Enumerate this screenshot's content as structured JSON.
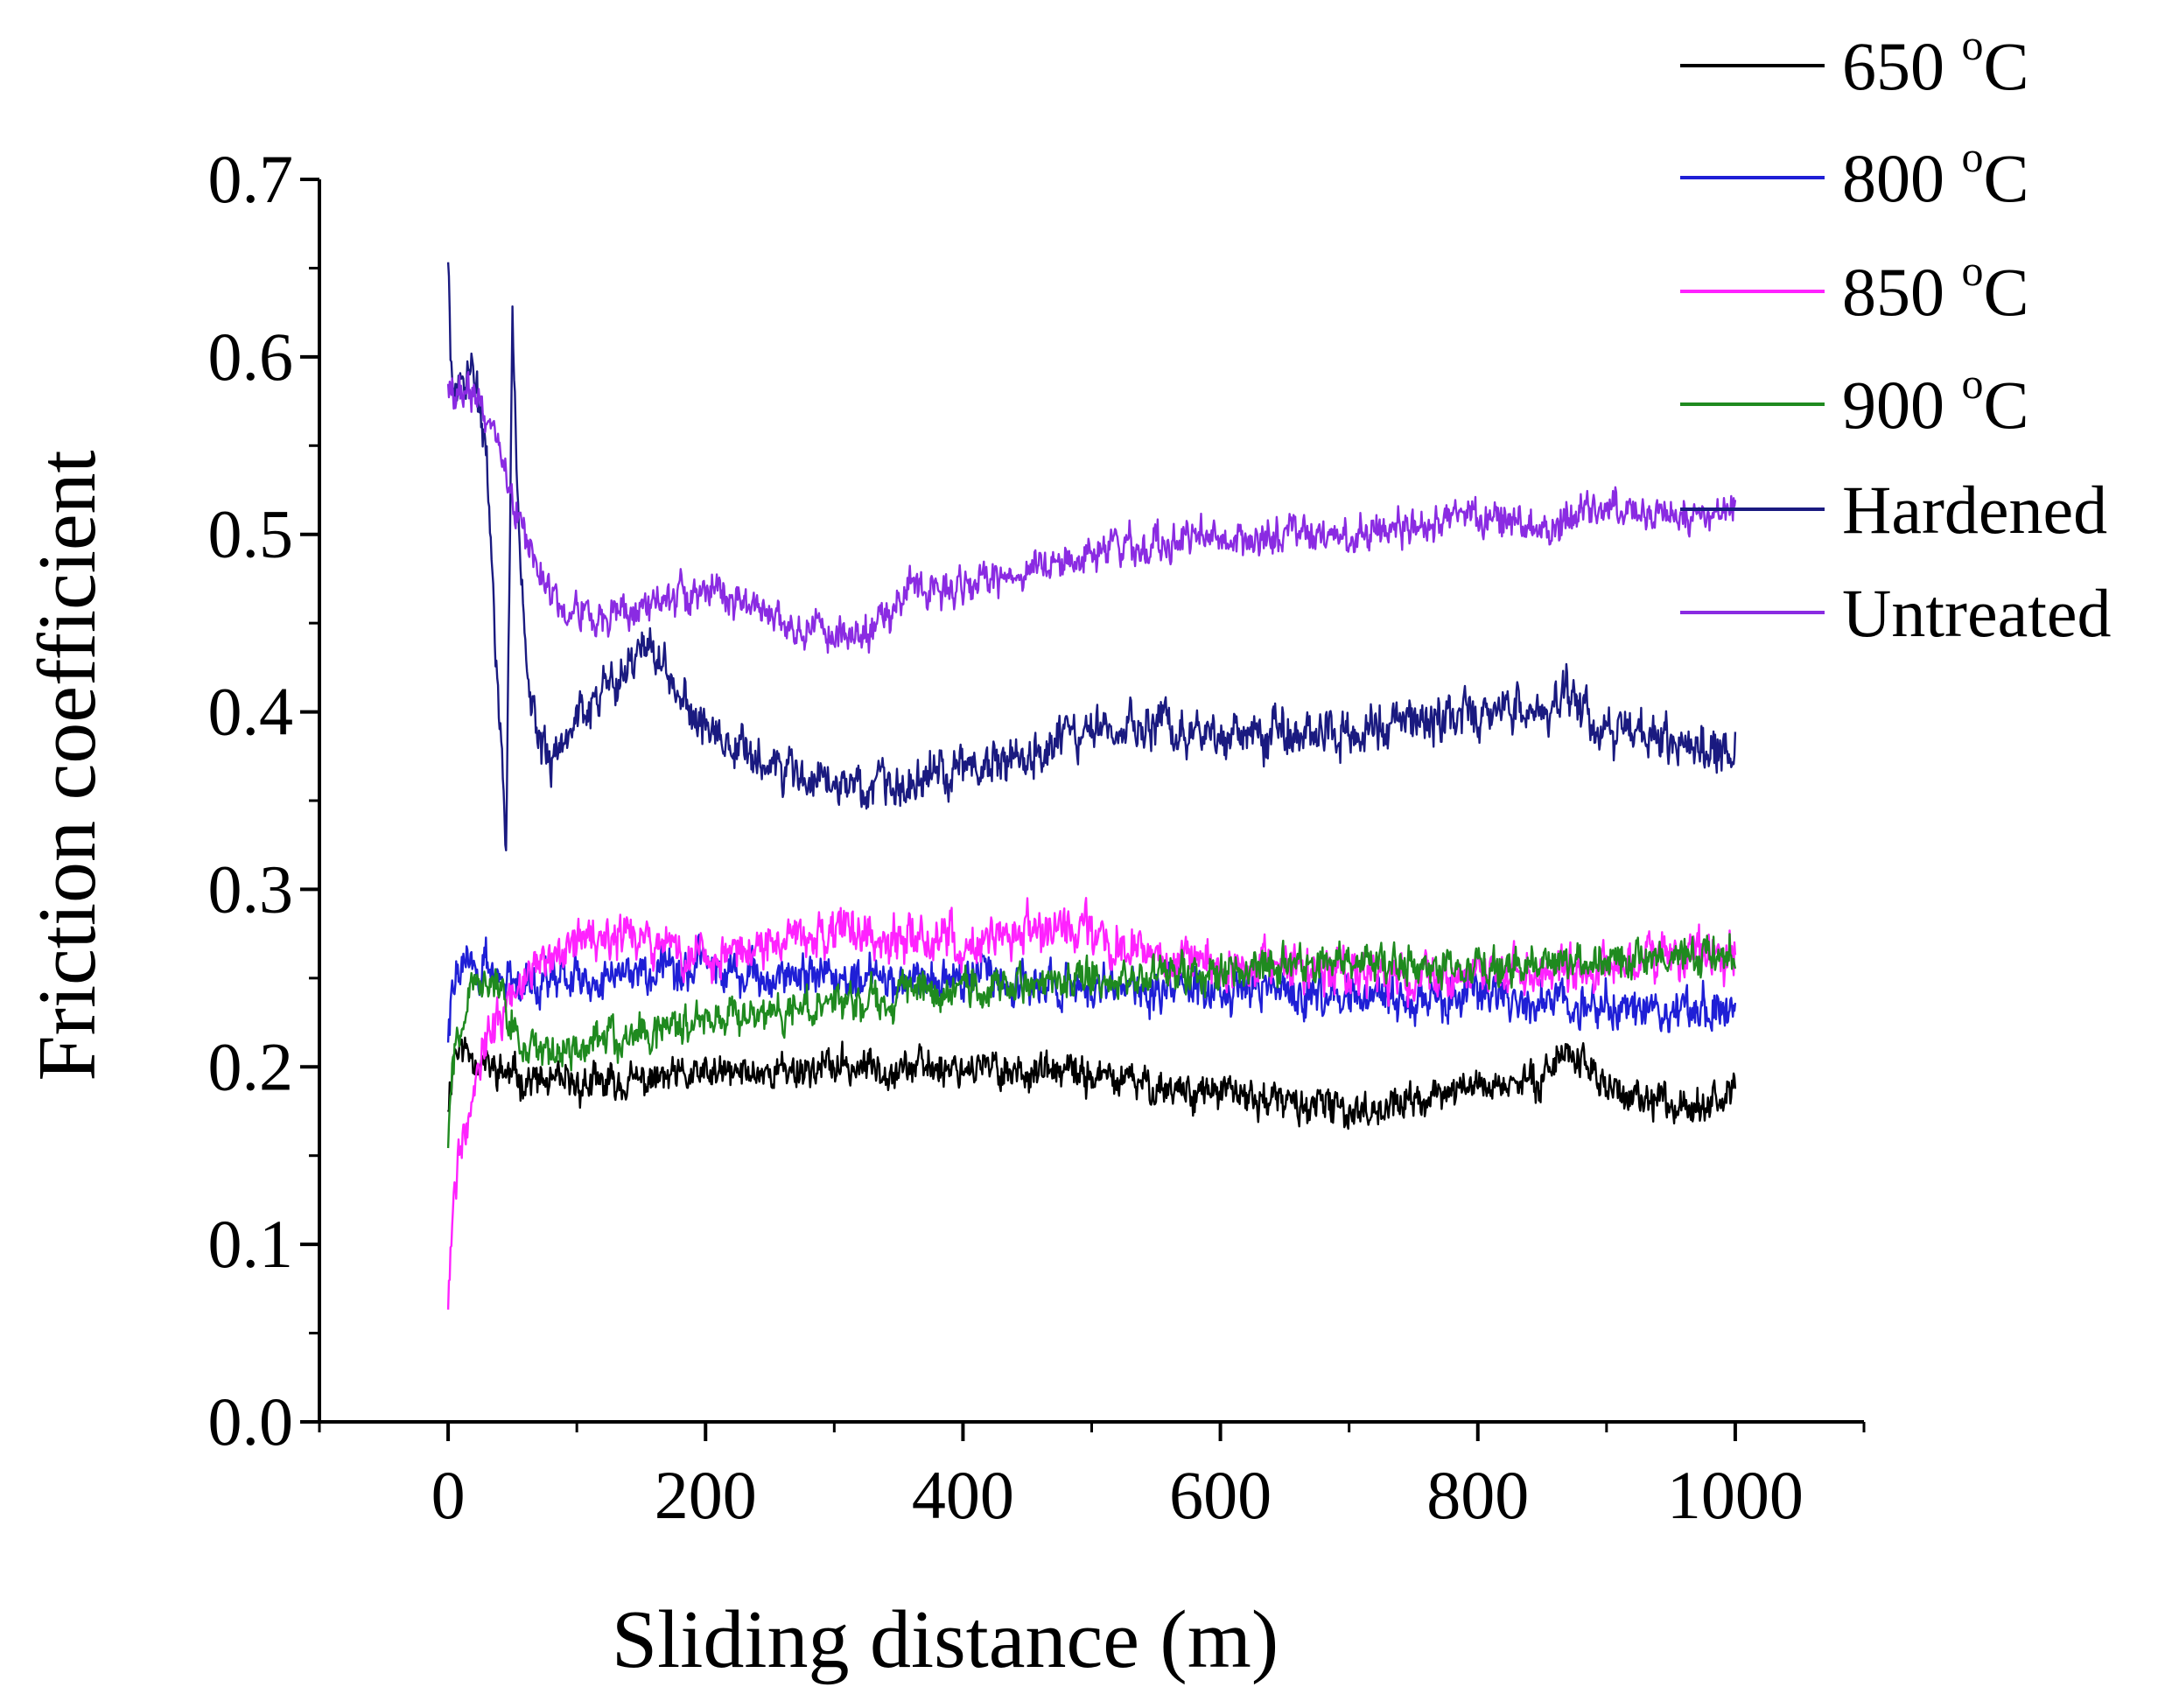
{
  "chart_data": {
    "type": "line",
    "title": "",
    "xlabel": "Sliding distance (m)",
    "ylabel": "Friction coefficient",
    "xlim": [
      -100,
      1100
    ],
    "ylim": [
      0.0,
      0.7
    ],
    "xticks": [
      "0",
      "200",
      "400",
      "600",
      "800",
      "1000"
    ],
    "yticks": [
      "0.0",
      "0.1",
      "0.2",
      "0.3",
      "0.4",
      "0.5",
      "0.6",
      "0.7"
    ],
    "legend_position": "top-right",
    "series": [
      {
        "name": "650 °C",
        "label_main": "650 ",
        "label_sup": "o",
        "label_unit": "C",
        "color": "#000000",
        "noise": 0.011,
        "seed": 11,
        "x": [
          0,
          5,
          15,
          30,
          50,
          80,
          120,
          200,
          300,
          400,
          500,
          540,
          600,
          650,
          700,
          750,
          800,
          840,
          870,
          900,
          920,
          960,
          1000
        ],
        "y": [
          0.18,
          0.21,
          0.21,
          0.2,
          0.195,
          0.19,
          0.19,
          0.195,
          0.2,
          0.2,
          0.195,
          0.19,
          0.185,
          0.18,
          0.175,
          0.18,
          0.19,
          0.19,
          0.21,
          0.19,
          0.18,
          0.18,
          0.185
        ]
      },
      {
        "name": "800 °C",
        "label_main": "800 ",
        "label_sup": "o",
        "label_unit": "C",
        "color": "#1f1fd6",
        "noise": 0.013,
        "seed": 22,
        "x": [
          0,
          5,
          15,
          40,
          100,
          200,
          300,
          400,
          500,
          600,
          700,
          800,
          900,
          950,
          1000
        ],
        "y": [
          0.22,
          0.25,
          0.26,
          0.25,
          0.25,
          0.255,
          0.25,
          0.25,
          0.245,
          0.245,
          0.24,
          0.24,
          0.235,
          0.23,
          0.235
        ]
      },
      {
        "name": "850 °C",
        "label_main": "850 ",
        "label_sup": "o",
        "label_unit": "C",
        "color": "#ff22ff",
        "noise": 0.014,
        "seed": 33,
        "x": [
          0,
          3,
          10,
          25,
          50,
          80,
          150,
          200,
          250,
          300,
          350,
          400,
          450,
          490,
          550,
          650,
          750,
          850,
          950,
          1000
        ],
        "y": [
          0.07,
          0.11,
          0.16,
          0.21,
          0.24,
          0.27,
          0.27,
          0.26,
          0.27,
          0.275,
          0.275,
          0.27,
          0.275,
          0.28,
          0.26,
          0.255,
          0.25,
          0.255,
          0.26,
          0.265
        ]
      },
      {
        "name": "900 °C",
        "label_main": "900 ",
        "label_sup": "o",
        "label_unit": "C",
        "color": "#1f8a1f",
        "noise": 0.012,
        "seed": 44,
        "x": [
          0,
          5,
          20,
          40,
          60,
          100,
          200,
          300,
          400,
          500,
          600,
          700,
          800,
          900,
          1000
        ],
        "y": [
          0.16,
          0.21,
          0.25,
          0.24,
          0.21,
          0.21,
          0.225,
          0.235,
          0.245,
          0.25,
          0.255,
          0.26,
          0.255,
          0.26,
          0.265
        ]
      },
      {
        "name": "Hardened",
        "label_main": "Hardened",
        "label_sup": "",
        "label_unit": "",
        "color": "#1a1a80",
        "noise": 0.014,
        "seed": 55,
        "x": [
          0,
          3,
          8,
          20,
          30,
          38,
          45,
          50,
          55,
          60,
          70,
          80,
          100,
          130,
          150,
          170,
          200,
          250,
          300,
          350,
          400,
          450,
          500,
          550,
          600,
          700,
          800,
          850,
          870,
          900,
          950,
          1000
        ],
        "y": [
          0.66,
          0.59,
          0.58,
          0.59,
          0.55,
          0.42,
          0.33,
          0.62,
          0.5,
          0.43,
          0.38,
          0.37,
          0.4,
          0.42,
          0.44,
          0.42,
          0.39,
          0.37,
          0.36,
          0.355,
          0.37,
          0.375,
          0.39,
          0.39,
          0.385,
          0.39,
          0.4,
          0.4,
          0.41,
          0.39,
          0.385,
          0.375
        ]
      },
      {
        "name": "Untreated",
        "label_main": "Untreated",
        "label_sup": "",
        "label_unit": "",
        "color": "#8a2be2",
        "noise": 0.011,
        "seed": 66,
        "x": [
          0,
          5,
          20,
          35,
          50,
          70,
          90,
          120,
          150,
          200,
          250,
          290,
          330,
          360,
          400,
          450,
          500,
          550,
          600,
          700,
          800,
          850,
          900,
          950,
          1000
        ],
        "y": [
          0.59,
          0.58,
          0.58,
          0.56,
          0.52,
          0.48,
          0.46,
          0.45,
          0.46,
          0.47,
          0.455,
          0.445,
          0.445,
          0.47,
          0.47,
          0.48,
          0.49,
          0.495,
          0.5,
          0.5,
          0.51,
          0.505,
          0.515,
          0.51,
          0.515
        ]
      }
    ]
  }
}
